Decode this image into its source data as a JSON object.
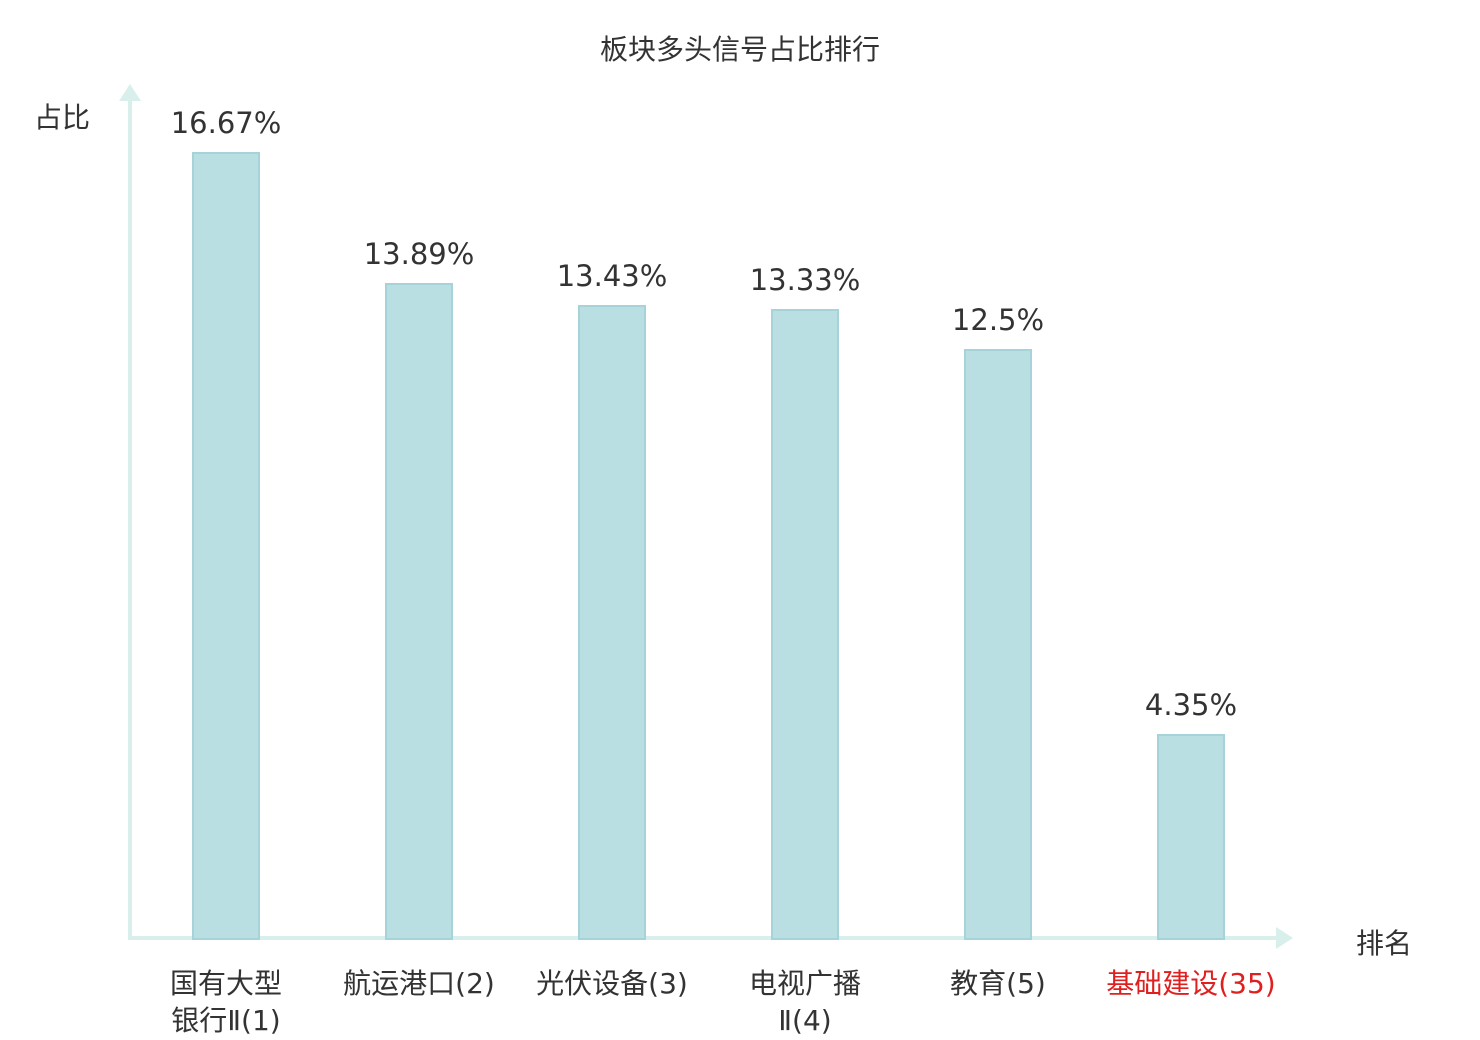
{
  "chart_data": {
    "type": "bar",
    "title": "板块多头信号占比排行",
    "xlabel": "排名",
    "ylabel": "占比",
    "categories": [
      "国有大型银行Ⅱ(1)",
      "航运港口(2)",
      "光伏设备(3)",
      "电视广播Ⅱ(4)",
      "教育(5)",
      "基础建设(35)"
    ],
    "values": [
      16.67,
      13.89,
      13.43,
      13.33,
      12.5,
      4.35
    ],
    "value_labels": [
      "16.67%",
      "13.89%",
      "13.43%",
      "13.33%",
      "12.5%",
      "4.35%"
    ],
    "category_lines": [
      [
        "国有大型",
        "银行Ⅱ(1)"
      ],
      [
        "航运港口(2)"
      ],
      [
        "光伏设备(3)"
      ],
      [
        "电视广播",
        "Ⅱ(4)"
      ],
      [
        "教育(5)"
      ],
      [
        "基础建设(35)"
      ]
    ],
    "highlight_index": 5,
    "ylim": [
      0,
      17.8
    ],
    "grid": false,
    "legend_position": "none",
    "bar_color": "#b9dfe3",
    "bar_border_color": "#a5d3d9",
    "axis_color": "#d8efec",
    "text_color": "#333333",
    "highlight_color": "#e01f1f"
  }
}
